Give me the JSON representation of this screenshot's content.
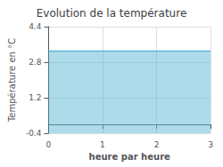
{
  "chart_data": {
    "type": "area",
    "title": "Evolution de la température",
    "x_label": "heure par heure",
    "y_label": "Température en °C",
    "x": [
      0,
      1,
      2,
      3
    ],
    "series": [
      {
        "name": "Température",
        "color": "#5bb8d4",
        "values": [
          3.3,
          3.3,
          3.3,
          3.3
        ]
      }
    ],
    "xlim": [
      0,
      3
    ],
    "xticks": [
      0,
      1,
      2,
      3
    ],
    "ylim": [
      -0.4,
      4.4
    ],
    "yticks": [
      -0.4,
      1.2,
      2.8,
      4.4
    ],
    "grid": true
  }
}
